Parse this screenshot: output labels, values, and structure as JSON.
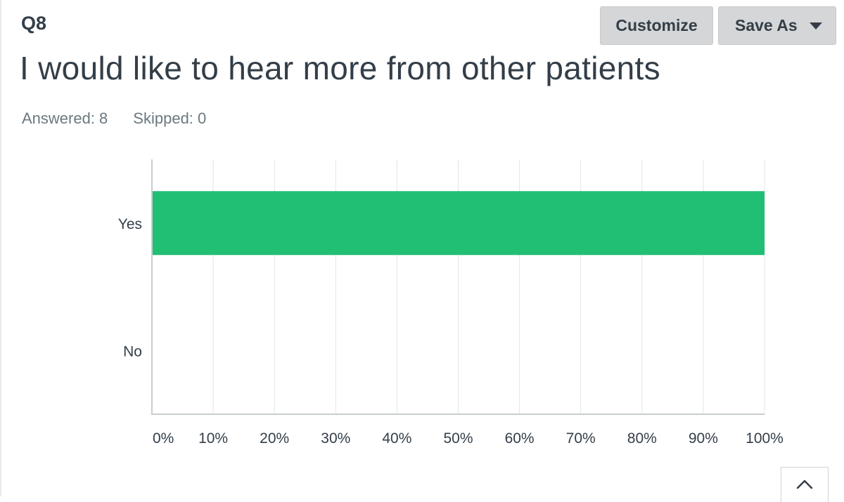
{
  "question": {
    "number": "Q8",
    "title": "I would like to hear more from other patients",
    "answered": "Answered: 8",
    "skipped": "Skipped: 0"
  },
  "toolbar": {
    "customize_label": "Customize",
    "save_as_label": "Save As"
  },
  "icons": {
    "save_as_caret": "chevron-down-icon",
    "scroll_top": "chevron-up-icon"
  },
  "colors": {
    "bar": "#20bf73",
    "grid": "#e3e5e7",
    "axis": "#c9cdd0",
    "text": "#333e48"
  },
  "chart_data": {
    "type": "bar",
    "orientation": "horizontal",
    "categories": [
      "Yes",
      "No"
    ],
    "values": [
      100,
      0
    ],
    "xlim": [
      0,
      100
    ],
    "xticks": [
      0,
      10,
      20,
      30,
      40,
      50,
      60,
      70,
      80,
      90,
      100
    ],
    "xtick_labels": [
      "0%",
      "10%",
      "20%",
      "30%",
      "40%",
      "50%",
      "60%",
      "70%",
      "80%",
      "90%",
      "100%"
    ],
    "grid": true
  }
}
